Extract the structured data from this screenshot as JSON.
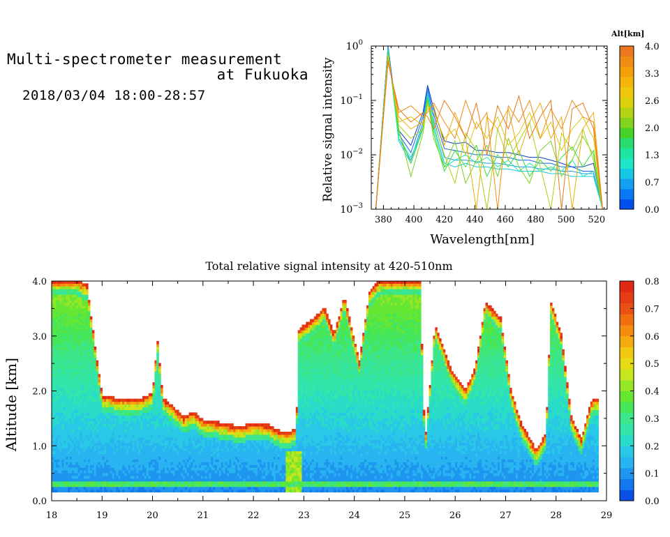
{
  "header": {
    "title_line1": "Multi-spectrometer measurement",
    "title_line2": "at Fukuoka",
    "subtitle": "2018/03/04 18:00-28:57"
  },
  "chart_data": [
    {
      "type": "line",
      "title": "",
      "xlabel": "Wavelength[nm]",
      "ylabel": "Relative signal intensity",
      "xscale": "linear",
      "yscale": "log",
      "xlim": [
        372,
        527
      ],
      "ylim": [
        0.001,
        1
      ],
      "xticks": [
        380,
        400,
        420,
        440,
        460,
        480,
        500,
        520
      ],
      "yticks": [
        {
          "base": "10",
          "exp": "0",
          "value": 1
        },
        {
          "base": "10",
          "exp": "−1",
          "value": 0.1
        },
        {
          "base": "10",
          "exp": "−2",
          "value": 0.01
        },
        {
          "base": "10",
          "exp": "−3",
          "value": 0.001
        }
      ],
      "x": [
        375,
        383,
        390,
        398,
        406,
        409,
        413,
        420,
        427,
        434,
        441,
        448,
        455,
        462,
        469,
        476,
        483,
        490,
        497,
        504,
        511,
        518,
        524
      ],
      "series": [
        {
          "alt": 0.0,
          "color": "#0a3cc8",
          "values": [
            0.001,
            1.0,
            0.028,
            0.015,
            0.06,
            0.19,
            0.07,
            0.018,
            0.016,
            0.017,
            0.012,
            0.012,
            0.011,
            0.011,
            0.01,
            0.009,
            0.009,
            0.008,
            0.007,
            0.006,
            0.006,
            0.007,
            0.001
          ]
        },
        {
          "alt": 0.35,
          "color": "#1468e6",
          "values": [
            0.001,
            1.0,
            0.024,
            0.011,
            0.05,
            0.17,
            0.055,
            0.013,
            0.012,
            0.011,
            0.01,
            0.01,
            0.009,
            0.009,
            0.008,
            0.008,
            0.007,
            0.007,
            0.006,
            0.006,
            0.005,
            0.005,
            0.001
          ]
        },
        {
          "alt": 0.7,
          "color": "#1e9bf0",
          "values": [
            0.001,
            0.95,
            0.02,
            0.008,
            0.04,
            0.15,
            0.045,
            0.009,
            0.008,
            0.008,
            0.0075,
            0.007,
            0.007,
            0.0065,
            0.006,
            0.006,
            0.0055,
            0.0055,
            0.005,
            0.005,
            0.0045,
            0.0045,
            0.001
          ]
        },
        {
          "alt": 1.0,
          "color": "#14c8dc",
          "values": [
            0.001,
            0.9,
            0.018,
            0.007,
            0.035,
            0.13,
            0.035,
            0.007,
            0.006,
            0.007,
            0.006,
            0.006,
            0.0055,
            0.0055,
            0.005,
            0.005,
            0.005,
            0.0045,
            0.0045,
            0.004,
            0.004,
            0.004,
            0.001
          ]
        },
        {
          "alt": 1.3,
          "color": "#1ee6aa",
          "values": [
            0.001,
            0.85,
            0.02,
            0.009,
            0.03,
            0.12,
            0.03,
            0.006,
            0.008,
            0.01,
            0.007,
            0.009,
            0.006,
            0.008,
            0.005,
            0.007,
            0.005,
            0.006,
            0.005,
            0.008,
            0.004,
            0.005,
            0.001
          ]
        },
        {
          "alt": 1.65,
          "color": "#3cdc3c",
          "values": [
            0.001,
            0.8,
            0.025,
            0.007,
            0.03,
            0.11,
            0.025,
            0.005,
            0.012,
            0.006,
            0.015,
            0.004,
            0.01,
            0.006,
            0.012,
            0.004,
            0.008,
            0.005,
            0.009,
            0.014,
            0.006,
            0.012,
            0.001
          ]
        },
        {
          "alt": 2.0,
          "color": "#78d21e",
          "values": [
            0.001,
            0.75,
            0.03,
            0.004,
            0.025,
            0.1,
            0.02,
            0.006,
            0.018,
            0.003,
            0.008,
            0.015,
            0.004,
            0.02,
            0.006,
            0.003,
            0.012,
            0.018,
            0.004,
            0.008,
            0.022,
            0.01,
            0.001
          ]
        },
        {
          "alt": 2.35,
          "color": "#aad214",
          "values": [
            0.001,
            0.7,
            0.035,
            0.02,
            0.03,
            0.09,
            0.04,
            0.01,
            0.003,
            0.025,
            0.012,
            0.001,
            0.03,
            0.008,
            0.018,
            0.04,
            0.006,
            0.001,
            0.025,
            0.012,
            0.03,
            0.008,
            0.001
          ]
        },
        {
          "alt": 2.7,
          "color": "#dcc80a",
          "values": [
            0.001,
            0.65,
            0.04,
            0.05,
            0.035,
            0.08,
            0.06,
            0.02,
            0.03,
            0.01,
            0.04,
            0.02,
            0.05,
            0.015,
            0.025,
            0.06,
            0.02,
            0.04,
            0.012,
            0.03,
            0.05,
            0.02,
            0.001
          ]
        },
        {
          "alt": 3.05,
          "color": "#f0aa0a",
          "values": [
            0.001,
            0.6,
            0.05,
            0.03,
            0.04,
            0.07,
            0.08,
            0.015,
            0.06,
            0.02,
            0.001,
            0.05,
            0.03,
            0.07,
            0.01,
            0.04,
            0.09,
            0.02,
            0.05,
            0.001,
            0.03,
            0.06,
            0.001
          ]
        },
        {
          "alt": 3.4,
          "color": "#f08c14",
          "values": [
            0.001,
            0.55,
            0.06,
            0.08,
            0.05,
            0.06,
            0.09,
            0.04,
            0.02,
            0.1,
            0.03,
            0.06,
            0.001,
            0.08,
            0.04,
            0.1,
            0.02,
            0.07,
            0.03,
            0.1,
            0.05,
            0.04,
            0.001
          ]
        },
        {
          "alt": 3.75,
          "color": "#e67814",
          "values": [
            0.001,
            0.5,
            0.07,
            0.04,
            0.06,
            0.05,
            0.03,
            0.1,
            0.05,
            0.02,
            0.09,
            0.01,
            0.08,
            0.03,
            0.12,
            0.02,
            0.05,
            0.1,
            0.001,
            0.07,
            0.09,
            0.03,
            0.001
          ]
        }
      ],
      "legend": {
        "title": "Alt[km]",
        "range": [
          0,
          4
        ],
        "ticks": [
          "0.0",
          "0.7",
          "1.3",
          "2.0",
          "2.6",
          "3.3",
          "4.0"
        ],
        "colors": [
          "#0050f0",
          "#0a78f5",
          "#14a0f0",
          "#14c8e6",
          "#1ee6c8",
          "#1ee6a0",
          "#28dc6e",
          "#46d228",
          "#82d21e",
          "#b4d214",
          "#dcd20a",
          "#f0c80a",
          "#f5b40a",
          "#f5a00a",
          "#f08c14",
          "#eb781e"
        ]
      }
    },
    {
      "type": "heatmap",
      "title": "Total relative signal intensity at 420-510nm",
      "xlabel": "",
      "ylabel": "Altitude [km]",
      "xlim": [
        18,
        29
      ],
      "ylim": [
        0,
        4
      ],
      "xticks": [
        "18",
        "19",
        "20",
        "21",
        "22",
        "23",
        "24",
        "25",
        "26",
        "27",
        "28",
        "29"
      ],
      "yticks": [
        "0.0",
        "1.0",
        "2.0",
        "3.0",
        "4.0"
      ],
      "data_start_altitude_km": 0.15,
      "data_end_time": 28.8,
      "cloud_top_km": [
        [
          18.0,
          4.0
        ],
        [
          18.3,
          4.0
        ],
        [
          18.5,
          4.0
        ],
        [
          18.7,
          3.9
        ],
        [
          18.9,
          2.5
        ],
        [
          19.0,
          1.9
        ],
        [
          19.4,
          1.82
        ],
        [
          19.8,
          1.85
        ],
        [
          20.0,
          1.95
        ],
        [
          20.1,
          2.9
        ],
        [
          20.2,
          1.85
        ],
        [
          20.4,
          1.7
        ],
        [
          20.6,
          1.5
        ],
        [
          20.8,
          1.6
        ],
        [
          21.0,
          1.45
        ],
        [
          21.3,
          1.4
        ],
        [
          21.7,
          1.33
        ],
        [
          22.0,
          1.38
        ],
        [
          22.3,
          1.35
        ],
        [
          22.5,
          1.25
        ],
        [
          22.7,
          1.22
        ],
        [
          22.85,
          1.3
        ],
        [
          22.9,
          3.1
        ],
        [
          23.2,
          3.3
        ],
        [
          23.4,
          3.5
        ],
        [
          23.6,
          3.0
        ],
        [
          23.8,
          3.7
        ],
        [
          24.1,
          2.5
        ],
        [
          24.3,
          3.8
        ],
        [
          24.5,
          4.0
        ],
        [
          24.9,
          4.0
        ],
        [
          25.1,
          4.0
        ],
        [
          25.3,
          4.0
        ],
        [
          25.4,
          1.0
        ],
        [
          25.6,
          3.2
        ],
        [
          25.9,
          2.4
        ],
        [
          26.2,
          2.0
        ],
        [
          26.4,
          2.4
        ],
        [
          26.6,
          3.6
        ],
        [
          26.9,
          3.3
        ],
        [
          27.1,
          2.0
        ],
        [
          27.3,
          1.4
        ],
        [
          27.6,
          0.9
        ],
        [
          27.8,
          1.2
        ],
        [
          27.9,
          3.6
        ],
        [
          28.1,
          3.0
        ],
        [
          28.3,
          1.5
        ],
        [
          28.5,
          1.1
        ],
        [
          28.7,
          1.8
        ],
        [
          28.8,
          1.85
        ]
      ],
      "colorbar": {
        "range": [
          0,
          0.8
        ],
        "ticks": [
          "0.0",
          "0.1",
          "0.2",
          "0.3",
          "0.4",
          "0.5",
          "0.6",
          "0.7",
          "0.8"
        ],
        "colors": [
          "#0a50e6",
          "#1478f0",
          "#1e96f0",
          "#28b4f0",
          "#28c8e6",
          "#28dcc8",
          "#32e6aa",
          "#3ce68c",
          "#46e65a",
          "#64e632",
          "#96e628",
          "#c8e61e",
          "#e6dc14",
          "#f0c80f",
          "#f5aa0f",
          "#f58c0f",
          "#f06e0f",
          "#eb5014",
          "#e63c14",
          "#e12814"
        ]
      }
    }
  ]
}
